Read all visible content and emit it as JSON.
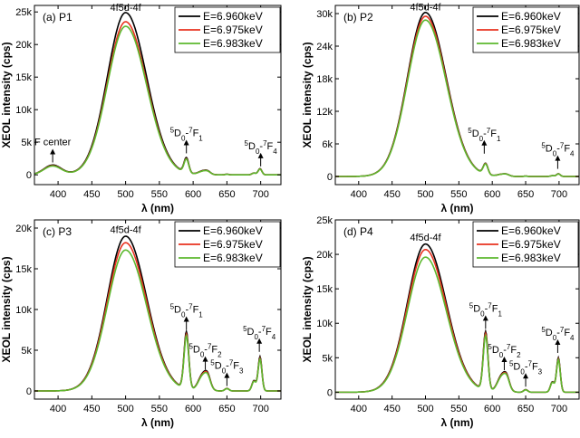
{
  "figure": {
    "legend_entries": [
      "E=6.960keV",
      "E=6.975keV",
      "E=6.983keV"
    ],
    "series_colors": [
      "#000000",
      "#e8321f",
      "#5cb82e"
    ]
  },
  "chart_data": [
    {
      "type": "line",
      "panel_label": "(a) P1",
      "xlabel": "λ (nm)",
      "ylabel": "XEOL intensity (cps)",
      "xlim": [
        365,
        730
      ],
      "ylim": [
        -1500,
        26000
      ],
      "xticks": [
        400,
        450,
        500,
        550,
        600,
        650,
        700
      ],
      "yticks": [
        0,
        5000,
        10000,
        15000,
        20000,
        25000
      ],
      "ytick_labels": [
        "0",
        "5k",
        "10k",
        "15k",
        "20k",
        "25k"
      ],
      "legend_position": "top-right",
      "series": [
        {
          "name": "E=6.960keV",
          "peak": 24900,
          "f_center": 1500,
          "d0f1": 2300,
          "d0f2": 600,
          "d0f4": 950
        },
        {
          "name": "E=6.975keV",
          "peak": 23500,
          "f_center": 1400,
          "d0f1": 2150,
          "d0f2": 560,
          "d0f4": 900
        },
        {
          "name": "E=6.983keV",
          "peak": 22800,
          "f_center": 1350,
          "d0f1": 2100,
          "d0f2": 540,
          "d0f4": 880
        }
      ],
      "annotations": [
        {
          "label": "4f5d-4f",
          "x": 500,
          "y": 25200,
          "arrow": false
        },
        {
          "label": "F center",
          "x": 392,
          "y": 1900,
          "arrow": true
        },
        {
          "label": "5D0-7F1",
          "x": 590,
          "y": 3300,
          "arrow": true
        },
        {
          "label": "5D0-7F4",
          "x": 700,
          "y": 1300,
          "arrow": true
        }
      ]
    },
    {
      "type": "line",
      "panel_label": "(b) P2",
      "xlabel": "λ (nm)",
      "ylabel": "XEOL intensity (cps)",
      "xlim": [
        365,
        730
      ],
      "ylim": [
        -1500,
        31500
      ],
      "xticks": [
        400,
        450,
        500,
        550,
        600,
        650,
        700
      ],
      "yticks": [
        0,
        6000,
        12000,
        18000,
        24000,
        30000
      ],
      "ytick_labels": [
        "0",
        "6k",
        "12k",
        "18k",
        "24k",
        "30k"
      ],
      "legend_position": "top-right",
      "series": [
        {
          "name": "E=6.960keV",
          "peak": 30200,
          "f_center": 0,
          "d0f1": 2000,
          "d0f2": 400,
          "d0f4": 500
        },
        {
          "name": "E=6.975keV",
          "peak": 29500,
          "f_center": 0,
          "d0f1": 1950,
          "d0f2": 390,
          "d0f4": 480
        },
        {
          "name": "E=6.983keV",
          "peak": 28800,
          "f_center": 0,
          "d0f1": 1900,
          "d0f2": 380,
          "d0f4": 470
        }
      ],
      "annotations": [
        {
          "label": "4f5d-4f",
          "x": 500,
          "y": 30600,
          "arrow": false
        },
        {
          "label": "5D0-7F1",
          "x": 588,
          "y": 4200,
          "arrow": true
        },
        {
          "label": "5D0-7F4",
          "x": 698,
          "y": 1400,
          "arrow": true
        }
      ]
    },
    {
      "type": "line",
      "panel_label": "(c) P3",
      "xlabel": "λ (nm)",
      "ylabel": "XEOL intensity (cps)",
      "xlim": [
        365,
        730
      ],
      "ylim": [
        -1000,
        21000
      ],
      "xticks": [
        400,
        450,
        500,
        550,
        600,
        650,
        700
      ],
      "yticks": [
        0,
        5000,
        10000,
        15000,
        20000
      ],
      "ytick_labels": [
        "0",
        "5k",
        "10k",
        "15k",
        "20k"
      ],
      "legend_position": "top-right",
      "series": [
        {
          "name": "E=6.960keV",
          "peak": 19000,
          "f_center": 0,
          "d0f1": 7000,
          "d0f2": 2100,
          "d0f4": 4200
        },
        {
          "name": "E=6.975keV",
          "peak": 18200,
          "f_center": 0,
          "d0f1": 6700,
          "d0f2": 2000,
          "d0f4": 4000
        },
        {
          "name": "E=6.983keV",
          "peak": 17300,
          "f_center": 0,
          "d0f1": 6500,
          "d0f2": 1900,
          "d0f4": 3900
        }
      ],
      "annotations": [
        {
          "label": "4f5d-4f",
          "x": 500,
          "y": 19400,
          "arrow": false
        },
        {
          "label": "5D0-7F1",
          "x": 590,
          "y": 7500,
          "arrow": true
        },
        {
          "label": "5D0-7F2",
          "x": 618,
          "y": 2600,
          "arrow": true
        },
        {
          "label": "5D0-7F3",
          "x": 650,
          "y": 600,
          "arrow": true
        },
        {
          "label": "5D0-7F4",
          "x": 698,
          "y": 4800,
          "arrow": true
        }
      ]
    },
    {
      "type": "line",
      "panel_label": "(d) P4",
      "xlabel": "λ (nm)",
      "ylabel": "XEOL intensity (cps)",
      "xlim": [
        365,
        730
      ],
      "ylim": [
        -1000,
        25000
      ],
      "xticks": [
        400,
        450,
        500,
        550,
        600,
        650,
        700
      ],
      "yticks": [
        0,
        5000,
        10000,
        15000,
        20000,
        25000
      ],
      "ytick_labels": [
        "0",
        "5k",
        "10k",
        "15k",
        "20k",
        "25k"
      ],
      "legend_position": "top-right",
      "series": [
        {
          "name": "E=6.960keV",
          "peak": 21500,
          "f_center": 0,
          "d0f1": 8500,
          "d0f2": 2500,
          "d0f4": 5000
        },
        {
          "name": "E=6.975keV",
          "peak": 20700,
          "f_center": 0,
          "d0f1": 8200,
          "d0f2": 2400,
          "d0f4": 4800
        },
        {
          "name": "E=6.983keV",
          "peak": 19600,
          "f_center": 0,
          "d0f1": 7900,
          "d0f2": 2300,
          "d0f4": 4700
        }
      ],
      "annotations": [
        {
          "label": "4f5d-4f",
          "x": 500,
          "y": 22000,
          "arrow": false
        },
        {
          "label": "5D0-7F1",
          "x": 590,
          "y": 9200,
          "arrow": true
        },
        {
          "label": "5D0-7F2",
          "x": 618,
          "y": 3200,
          "arrow": true
        },
        {
          "label": "5D0-7F3",
          "x": 650,
          "y": 800,
          "arrow": true
        },
        {
          "label": "5D0-7F4",
          "x": 698,
          "y": 5700,
          "arrow": true
        }
      ]
    }
  ]
}
